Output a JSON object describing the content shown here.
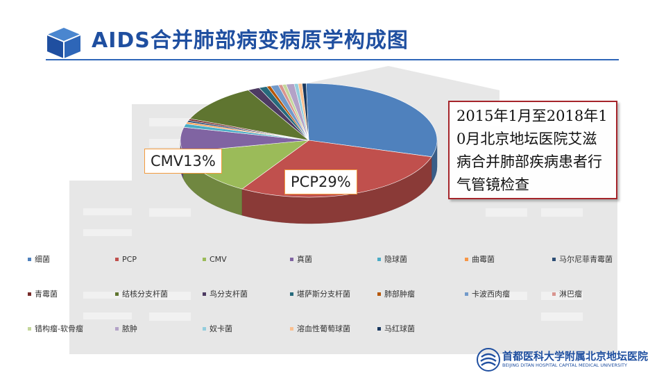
{
  "header": {
    "title": "AIDS合并肺部病变病原学构成图"
  },
  "info_box": {
    "text": "2015年1月至2018年10月北京地坛医院艾滋病合并肺部疾病患者行气管镜检查"
  },
  "callouts": {
    "cmv": "CMV13%",
    "pcp": "PCP29%"
  },
  "footer": {
    "logo_cn": "首都医科大学附属北京地坛医院",
    "logo_en": "BEIJING DITAN HOSPITAL CAPITAL MEDICAL UNIVERSITY"
  },
  "colors": {
    "title": "#1f4fa0",
    "info_border": "#a5242a",
    "callout_border": "#f39a3c"
  },
  "chart_data": {
    "type": "pie",
    "style": "3d",
    "legend_position": "bottom",
    "series": [
      {
        "name": "细菌",
        "value": 30,
        "color": "#4f81bd"
      },
      {
        "name": "PCP",
        "value": 29,
        "color": "#c0504d"
      },
      {
        "name": "CMV",
        "value": 13,
        "color": "#9bbb59"
      },
      {
        "name": "真菌",
        "value": 7,
        "color": "#8064a2"
      },
      {
        "name": "隐球菌",
        "value": 1,
        "color": "#4bacc6"
      },
      {
        "name": "曲霉菌",
        "value": 0.5,
        "color": "#f79646"
      },
      {
        "name": "马尔尼菲青霉菌",
        "value": 0.5,
        "color": "#2c4d75"
      },
      {
        "name": "青霉菌",
        "value": 0.5,
        "color": "#772c2a"
      },
      {
        "name": "结核分支杆菌",
        "value": 11,
        "color": "#5f7530"
      },
      {
        "name": "鸟分支杆菌",
        "value": 1.5,
        "color": "#4d3b62"
      },
      {
        "name": "堪萨斯分支杆菌",
        "value": 1,
        "color": "#276a7c"
      },
      {
        "name": "肺部肿瘤",
        "value": 0.5,
        "color": "#b65708"
      },
      {
        "name": "卡波西肉瘤",
        "value": 1,
        "color": "#729aca"
      },
      {
        "name": "淋巴瘤",
        "value": 0.5,
        "color": "#d9958f"
      },
      {
        "name": "错构瘤-软骨瘤",
        "value": 0.5,
        "color": "#c4d79b"
      },
      {
        "name": "脓肿",
        "value": 1,
        "color": "#b3a2c7"
      },
      {
        "name": "奴卡菌",
        "value": 0.5,
        "color": "#93cddd"
      },
      {
        "name": "溶血性葡萄球菌",
        "value": 0.5,
        "color": "#fac090"
      },
      {
        "name": "马红球菌",
        "value": 0.5,
        "color": "#17375e"
      }
    ]
  }
}
